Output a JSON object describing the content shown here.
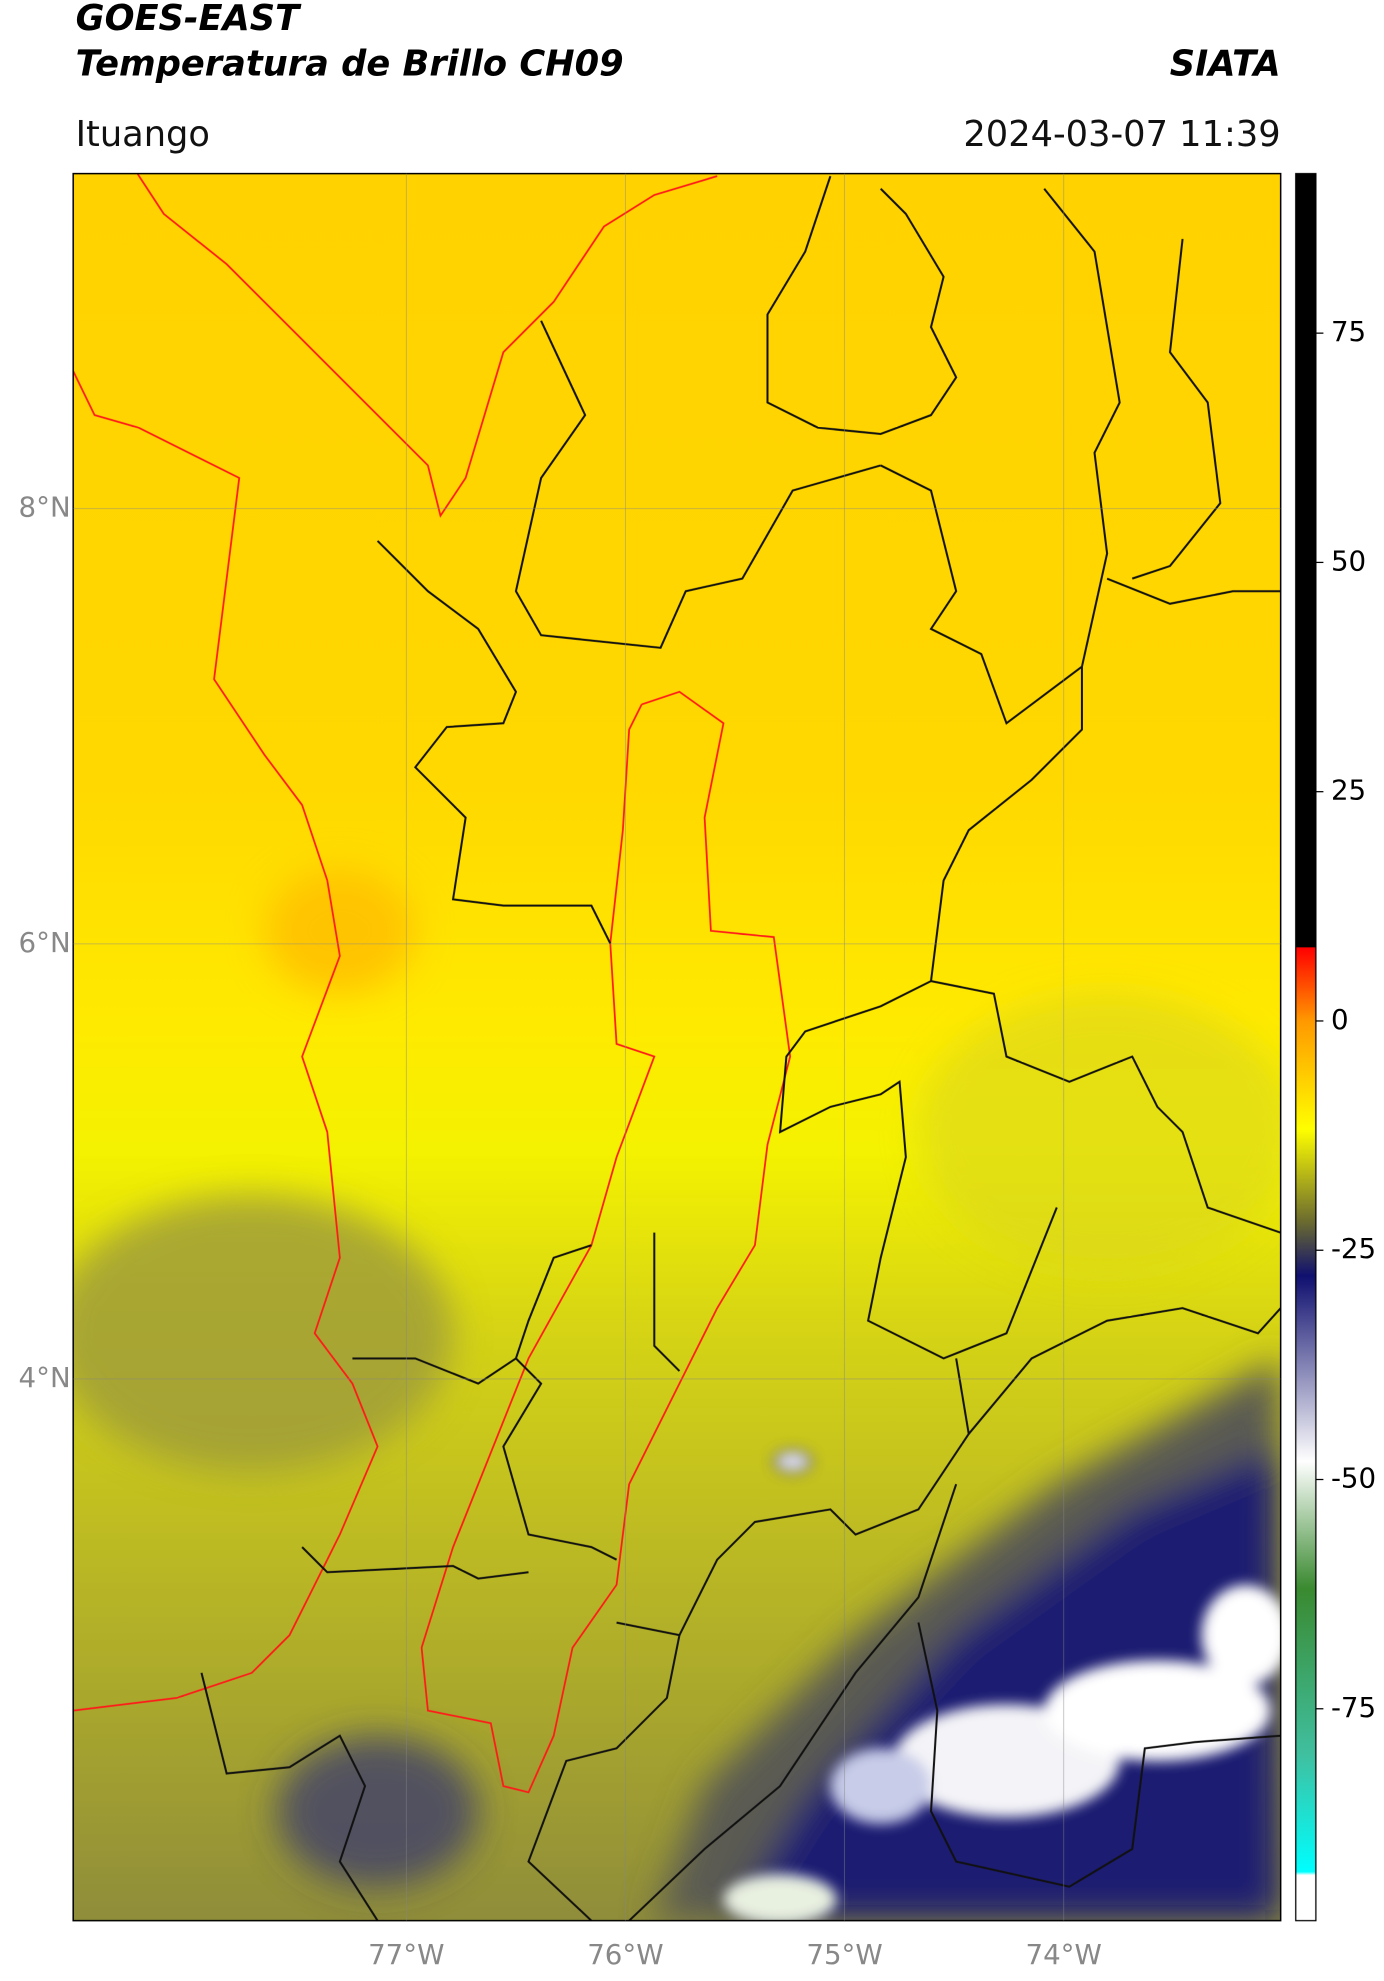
{
  "header": {
    "title": "GOES-EAST",
    "subtitle": "Temperatura de Brillo CH09",
    "source": "SIATA",
    "region": "Ituango",
    "datetime": "2024-03-07 11:39"
  },
  "chart_data": {
    "type": "map",
    "xlim": [
      -78.52,
      -73.01
    ],
    "ylim": [
      1.51,
      9.54
    ],
    "xticks": [
      {
        "value": -77,
        "label": "77°W"
      },
      {
        "value": -76,
        "label": "76°W"
      },
      {
        "value": -75,
        "label": "75°W"
      },
      {
        "value": -74,
        "label": "74°W"
      }
    ],
    "yticks": [
      {
        "value": 8,
        "label": "8°N"
      },
      {
        "value": 6,
        "label": "6°N"
      },
      {
        "value": 4,
        "label": "4°N"
      }
    ],
    "grid": true,
    "colorbar": {
      "lim": [
        -98.1,
        92.4
      ],
      "ticks": [
        75,
        50,
        25,
        0,
        -25,
        -50,
        -75
      ]
    }
  }
}
